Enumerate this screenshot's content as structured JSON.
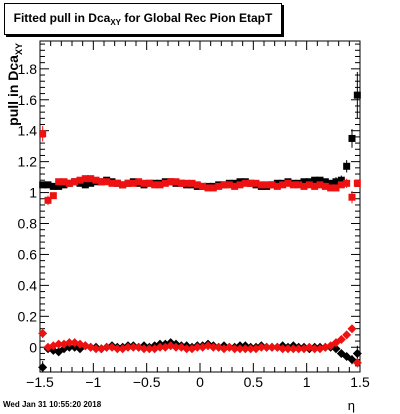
{
  "chart_data": {
    "type": "scatter",
    "title_main": "Fitted pull in Dca",
    "title_sub": "XY",
    "title_rest": " for Global Rec Pion EtapT",
    "xlabel": "η",
    "ylabel_main": "pull in Dca",
    "ylabel_sub": "XY",
    "xlim": [
      -1.5,
      1.5
    ],
    "ylim": [
      -0.16,
      1.98
    ],
    "x_ticks": [
      {
        "v": -1.5,
        "label": "−1.5"
      },
      {
        "v": -1.0,
        "label": "−1"
      },
      {
        "v": -0.5,
        "label": "−0.5"
      },
      {
        "v": 0,
        "label": "0"
      },
      {
        "v": 0.5,
        "label": "0.5"
      },
      {
        "v": 1.0,
        "label": "1"
      },
      {
        "v": 1.5,
        "label": "1.5"
      }
    ],
    "y_ticks": [
      {
        "v": 0,
        "label": "0"
      },
      {
        "v": 0.2,
        "label": "0.2"
      },
      {
        "v": 0.4,
        "label": "0.4"
      },
      {
        "v": 0.6,
        "label": "0.6"
      },
      {
        "v": 0.8,
        "label": "0.8"
      },
      {
        "v": 1.0,
        "label": "1"
      },
      {
        "v": 1.2,
        "label": "1.2"
      },
      {
        "v": 1.4,
        "label": "1.4"
      },
      {
        "v": 1.6,
        "label": "1.6"
      },
      {
        "v": 1.8,
        "label": "1.8"
      }
    ],
    "series": [
      {
        "color": "#000000",
        "marker": "square",
        "x": [
          -1.475,
          -1.425,
          -1.375,
          -1.325,
          -1.275,
          -1.225,
          -1.175,
          -1.125,
          -1.075,
          -1.025,
          -0.975,
          -0.925,
          -0.875,
          -0.825,
          -0.775,
          -0.725,
          -0.675,
          -0.625,
          -0.575,
          -0.525,
          -0.475,
          -0.425,
          -0.375,
          -0.325,
          -0.275,
          -0.225,
          -0.175,
          -0.125,
          -0.075,
          -0.025,
          0.025,
          0.075,
          0.125,
          0.175,
          0.225,
          0.275,
          0.325,
          0.375,
          0.425,
          0.475,
          0.525,
          0.575,
          0.625,
          0.675,
          0.725,
          0.775,
          0.825,
          0.875,
          0.925,
          0.975,
          1.025,
          1.075,
          1.125,
          1.175,
          1.225,
          1.275,
          1.325,
          1.375,
          1.425,
          1.475
        ],
        "y": [
          1.05,
          1.05,
          1.04,
          1.04,
          1.05,
          1.06,
          1.07,
          1.06,
          1.05,
          1.06,
          1.07,
          1.07,
          1.08,
          1.07,
          1.06,
          1.05,
          1.06,
          1.07,
          1.06,
          1.05,
          1.06,
          1.06,
          1.06,
          1.07,
          1.07,
          1.06,
          1.06,
          1.05,
          1.05,
          1.04,
          1.04,
          1.04,
          1.04,
          1.05,
          1.05,
          1.06,
          1.06,
          1.07,
          1.07,
          1.06,
          1.05,
          1.04,
          1.04,
          1.05,
          1.06,
          1.06,
          1.07,
          1.06,
          1.06,
          1.07,
          1.07,
          1.08,
          1.08,
          1.07,
          1.06,
          1.07,
          1.08,
          1.17,
          1.35,
          1.63
        ],
        "yerr": [
          0.02,
          0.01,
          0.01,
          0.01,
          0.01,
          0.01,
          0.01,
          0.01,
          0.01,
          0.01,
          0.01,
          0.01,
          0.01,
          0.01,
          0.01,
          0.01,
          0.01,
          0.01,
          0.01,
          0.01,
          0.01,
          0.01,
          0.01,
          0.01,
          0.01,
          0.01,
          0.01,
          0.01,
          0.01,
          0.01,
          0.01,
          0.01,
          0.01,
          0.01,
          0.01,
          0.01,
          0.01,
          0.01,
          0.01,
          0.01,
          0.01,
          0.01,
          0.01,
          0.01,
          0.01,
          0.01,
          0.01,
          0.01,
          0.01,
          0.01,
          0.01,
          0.01,
          0.01,
          0.02,
          0.02,
          0.03,
          0.03,
          0.04,
          0.06,
          0.15
        ]
      },
      {
        "color": "#ee1111",
        "marker": "square",
        "x": [
          -1.475,
          -1.425,
          -1.375,
          -1.325,
          -1.275,
          -1.225,
          -1.175,
          -1.125,
          -1.075,
          -1.025,
          -0.975,
          -0.925,
          -0.875,
          -0.825,
          -0.775,
          -0.725,
          -0.675,
          -0.625,
          -0.575,
          -0.525,
          -0.475,
          -0.425,
          -0.375,
          -0.325,
          -0.275,
          -0.225,
          -0.175,
          -0.125,
          -0.075,
          -0.025,
          0.025,
          0.075,
          0.125,
          0.175,
          0.225,
          0.275,
          0.325,
          0.375,
          0.425,
          0.475,
          0.525,
          0.575,
          0.625,
          0.675,
          0.725,
          0.775,
          0.825,
          0.875,
          0.925,
          0.975,
          1.025,
          1.075,
          1.125,
          1.175,
          1.225,
          1.275,
          1.325,
          1.375,
          1.425,
          1.475
        ],
        "y": [
          1.38,
          0.95,
          0.98,
          1.07,
          1.07,
          1.06,
          1.07,
          1.08,
          1.09,
          1.09,
          1.08,
          1.07,
          1.07,
          1.06,
          1.06,
          1.05,
          1.06,
          1.06,
          1.07,
          1.06,
          1.06,
          1.05,
          1.05,
          1.06,
          1.07,
          1.07,
          1.06,
          1.06,
          1.06,
          1.05,
          1.04,
          1.03,
          1.03,
          1.04,
          1.05,
          1.05,
          1.04,
          1.05,
          1.06,
          1.06,
          1.06,
          1.05,
          1.05,
          1.05,
          1.04,
          1.05,
          1.06,
          1.05,
          1.05,
          1.04,
          1.05,
          1.04,
          1.05,
          1.04,
          1.03,
          1.03,
          1.05,
          1.06,
          0.97,
          1.06
        ],
        "yerr": [
          0.05,
          0.03,
          0.02,
          0.01,
          0.01,
          0.01,
          0.01,
          0.01,
          0.01,
          0.01,
          0.01,
          0.01,
          0.01,
          0.01,
          0.01,
          0.01,
          0.01,
          0.01,
          0.01,
          0.01,
          0.01,
          0.01,
          0.01,
          0.01,
          0.01,
          0.01,
          0.01,
          0.01,
          0.01,
          0.01,
          0.01,
          0.01,
          0.01,
          0.01,
          0.01,
          0.01,
          0.01,
          0.01,
          0.01,
          0.01,
          0.01,
          0.01,
          0.01,
          0.01,
          0.01,
          0.01,
          0.01,
          0.01,
          0.01,
          0.01,
          0.01,
          0.01,
          0.01,
          0.01,
          0.01,
          0.01,
          0.02,
          0.03,
          0.04,
          0.02
        ]
      },
      {
        "color": "#000000",
        "marker": "diamond",
        "x": [
          -1.475,
          -1.425,
          -1.375,
          -1.325,
          -1.275,
          -1.225,
          -1.175,
          -1.125,
          -1.075,
          -1.025,
          -0.975,
          -0.925,
          -0.875,
          -0.825,
          -0.775,
          -0.725,
          -0.675,
          -0.625,
          -0.575,
          -0.525,
          -0.475,
          -0.425,
          -0.375,
          -0.325,
          -0.275,
          -0.225,
          -0.175,
          -0.125,
          -0.075,
          -0.025,
          0.025,
          0.075,
          0.125,
          0.175,
          0.225,
          0.275,
          0.325,
          0.375,
          0.425,
          0.475,
          0.525,
          0.575,
          0.625,
          0.675,
          0.725,
          0.775,
          0.825,
          0.875,
          0.925,
          0.975,
          1.025,
          1.075,
          1.125,
          1.175,
          1.225,
          1.275,
          1.325,
          1.375,
          1.425,
          1.475
        ],
        "y": [
          -0.13,
          -0.01,
          -0.02,
          -0.03,
          -0.01,
          0.0,
          0.0,
          -0.01,
          0.01,
          0.0,
          0.0,
          -0.01,
          0.0,
          0.01,
          0.0,
          0.0,
          0.01,
          0.01,
          0.0,
          0.01,
          0.0,
          0.01,
          0.02,
          0.02,
          0.03,
          0.02,
          0.01,
          0.01,
          0.0,
          0.01,
          0.01,
          0.02,
          0.01,
          0.0,
          0.01,
          0.0,
          0.0,
          0.01,
          0.01,
          0.0,
          0.0,
          0.01,
          0.0,
          0.0,
          0.0,
          0.01,
          0.0,
          0.01,
          0.0,
          0.0,
          -0.01,
          0.0,
          0.0,
          0.0,
          0.0,
          -0.01,
          -0.04,
          -0.06,
          -0.08,
          -0.04
        ],
        "yerr": [
          0.04,
          0.02,
          0.01,
          0.01,
          0.01,
          0.01,
          0.01,
          0.01,
          0.01,
          0.01,
          0.01,
          0.01,
          0.01,
          0.01,
          0.01,
          0.01,
          0.01,
          0.01,
          0.01,
          0.01,
          0.01,
          0.01,
          0.01,
          0.01,
          0.01,
          0.01,
          0.01,
          0.01,
          0.01,
          0.01,
          0.01,
          0.01,
          0.01,
          0.01,
          0.01,
          0.01,
          0.01,
          0.01,
          0.01,
          0.01,
          0.01,
          0.01,
          0.01,
          0.01,
          0.01,
          0.01,
          0.01,
          0.01,
          0.01,
          0.01,
          0.01,
          0.01,
          0.01,
          0.01,
          0.01,
          0.01,
          0.01,
          0.02,
          0.03,
          0.05
        ]
      },
      {
        "color": "#ee1111",
        "marker": "diamond",
        "x": [
          -1.475,
          -1.425,
          -1.375,
          -1.325,
          -1.275,
          -1.225,
          -1.175,
          -1.125,
          -1.075,
          -1.025,
          -0.975,
          -0.925,
          -0.875,
          -0.825,
          -0.775,
          -0.725,
          -0.675,
          -0.625,
          -0.575,
          -0.525,
          -0.475,
          -0.425,
          -0.375,
          -0.325,
          -0.275,
          -0.225,
          -0.175,
          -0.125,
          -0.075,
          -0.025,
          0.025,
          0.075,
          0.125,
          0.175,
          0.225,
          0.275,
          0.325,
          0.375,
          0.425,
          0.475,
          0.525,
          0.575,
          0.625,
          0.675,
          0.725,
          0.775,
          0.825,
          0.875,
          0.925,
          0.975,
          1.025,
          1.075,
          1.125,
          1.175,
          1.225,
          1.275,
          1.325,
          1.375,
          1.425,
          1.475
        ],
        "y": [
          0.09,
          0.0,
          0.01,
          0.02,
          0.02,
          0.03,
          0.03,
          0.02,
          0.01,
          0.0,
          -0.01,
          -0.01,
          0.0,
          0.0,
          -0.01,
          -0.01,
          0.0,
          0.0,
          0.0,
          -0.01,
          -0.01,
          -0.01,
          0.0,
          0.0,
          0.01,
          0.0,
          0.0,
          -0.01,
          -0.01,
          0.0,
          0.0,
          0.01,
          0.0,
          0.0,
          -0.01,
          0.0,
          -0.01,
          -0.01,
          -0.01,
          -0.01,
          -0.01,
          0.0,
          0.0,
          0.0,
          0.0,
          -0.01,
          -0.01,
          -0.01,
          -0.01,
          -0.01,
          0.0,
          -0.01,
          -0.01,
          0.0,
          0.01,
          0.03,
          0.05,
          0.08,
          0.12,
          -0.1
        ],
        "yerr": [
          0.03,
          0.01,
          0.01,
          0.01,
          0.01,
          0.01,
          0.01,
          0.01,
          0.01,
          0.01,
          0.01,
          0.01,
          0.01,
          0.01,
          0.01,
          0.01,
          0.01,
          0.01,
          0.01,
          0.01,
          0.01,
          0.01,
          0.01,
          0.01,
          0.01,
          0.01,
          0.01,
          0.01,
          0.01,
          0.01,
          0.01,
          0.01,
          0.01,
          0.01,
          0.01,
          0.01,
          0.01,
          0.01,
          0.01,
          0.01,
          0.01,
          0.01,
          0.01,
          0.01,
          0.01,
          0.01,
          0.01,
          0.01,
          0.01,
          0.01,
          0.01,
          0.01,
          0.01,
          0.01,
          0.01,
          0.01,
          0.01,
          0.01,
          0.02,
          0.03
        ]
      }
    ]
  },
  "footer": {
    "timestamp": "Wed Jan 31 10:55:20 2018"
  }
}
